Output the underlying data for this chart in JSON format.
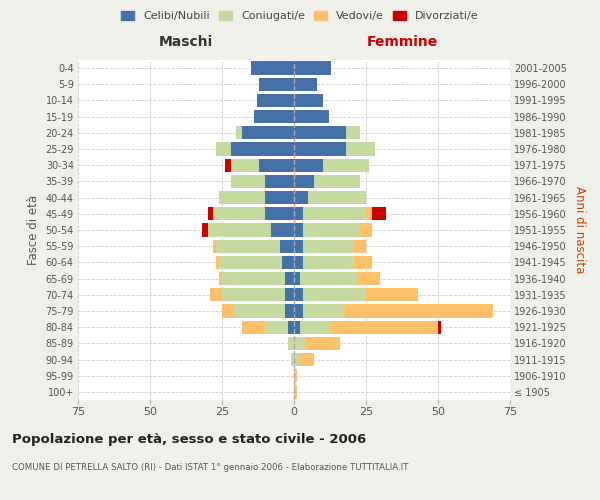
{
  "age_groups": [
    "100+",
    "95-99",
    "90-94",
    "85-89",
    "80-84",
    "75-79",
    "70-74",
    "65-69",
    "60-64",
    "55-59",
    "50-54",
    "45-49",
    "40-44",
    "35-39",
    "30-34",
    "25-29",
    "20-24",
    "15-19",
    "10-14",
    "5-9",
    "0-4"
  ],
  "birth_years": [
    "≤ 1905",
    "1906-1910",
    "1911-1915",
    "1916-1920",
    "1921-1925",
    "1926-1930",
    "1931-1935",
    "1936-1940",
    "1941-1945",
    "1946-1950",
    "1951-1955",
    "1956-1960",
    "1961-1965",
    "1966-1970",
    "1971-1975",
    "1976-1980",
    "1981-1985",
    "1986-1990",
    "1991-1995",
    "1996-2000",
    "2001-2005"
  ],
  "maschi": {
    "celibi": [
      0,
      0,
      0,
      0,
      2,
      3,
      3,
      3,
      4,
      5,
      8,
      10,
      10,
      10,
      12,
      22,
      18,
      14,
      13,
      12,
      15
    ],
    "coniugati": [
      0,
      0,
      1,
      2,
      8,
      18,
      22,
      22,
      22,
      22,
      22,
      18,
      16,
      12,
      10,
      5,
      2,
      0,
      0,
      0,
      0
    ],
    "vedovi": [
      0,
      0,
      0,
      0,
      8,
      4,
      4,
      1,
      1,
      1,
      0,
      0,
      0,
      0,
      0,
      0,
      0,
      0,
      0,
      0,
      0
    ],
    "divorziati": [
      0,
      0,
      0,
      0,
      0,
      0,
      0,
      0,
      0,
      0,
      2,
      2,
      0,
      0,
      2,
      0,
      0,
      0,
      0,
      0,
      0
    ]
  },
  "femmine": {
    "nubili": [
      0,
      0,
      0,
      0,
      2,
      3,
      3,
      2,
      3,
      3,
      3,
      3,
      5,
      7,
      10,
      18,
      18,
      12,
      10,
      8,
      13
    ],
    "coniugate": [
      0,
      0,
      2,
      4,
      10,
      14,
      22,
      20,
      18,
      18,
      20,
      22,
      20,
      16,
      16,
      10,
      5,
      0,
      0,
      0,
      0
    ],
    "vedove": [
      1,
      1,
      5,
      12,
      38,
      52,
      18,
      8,
      6,
      4,
      4,
      2,
      0,
      0,
      0,
      0,
      0,
      0,
      0,
      0,
      0
    ],
    "divorziate": [
      0,
      0,
      0,
      0,
      1,
      0,
      0,
      0,
      0,
      0,
      0,
      5,
      0,
      0,
      0,
      0,
      0,
      0,
      0,
      0,
      0
    ]
  },
  "colors": {
    "celibi": "#4472a8",
    "coniugati": "#c5d9a0",
    "vedovi": "#ffc06a",
    "divorziati": "#cc0000"
  },
  "title": "Popolazione per età, sesso e stato civile - 2006",
  "subtitle": "COMUNE DI PETRELLA SALTO (RI) - Dati ISTAT 1° gennaio 2006 - Elaborazione TUTTITALIA.IT",
  "xlabel_left": "Maschi",
  "xlabel_right": "Femmine",
  "ylabel_left": "Fasce di età",
  "ylabel_right": "Anni di nascita",
  "xlim": 75,
  "bg_color": "#f0f0eb",
  "plot_bg": "#ffffff",
  "legend_labels": [
    "Celibi/Nubili",
    "Coniugati/e",
    "Vedovi/e",
    "Divorziati/e"
  ]
}
